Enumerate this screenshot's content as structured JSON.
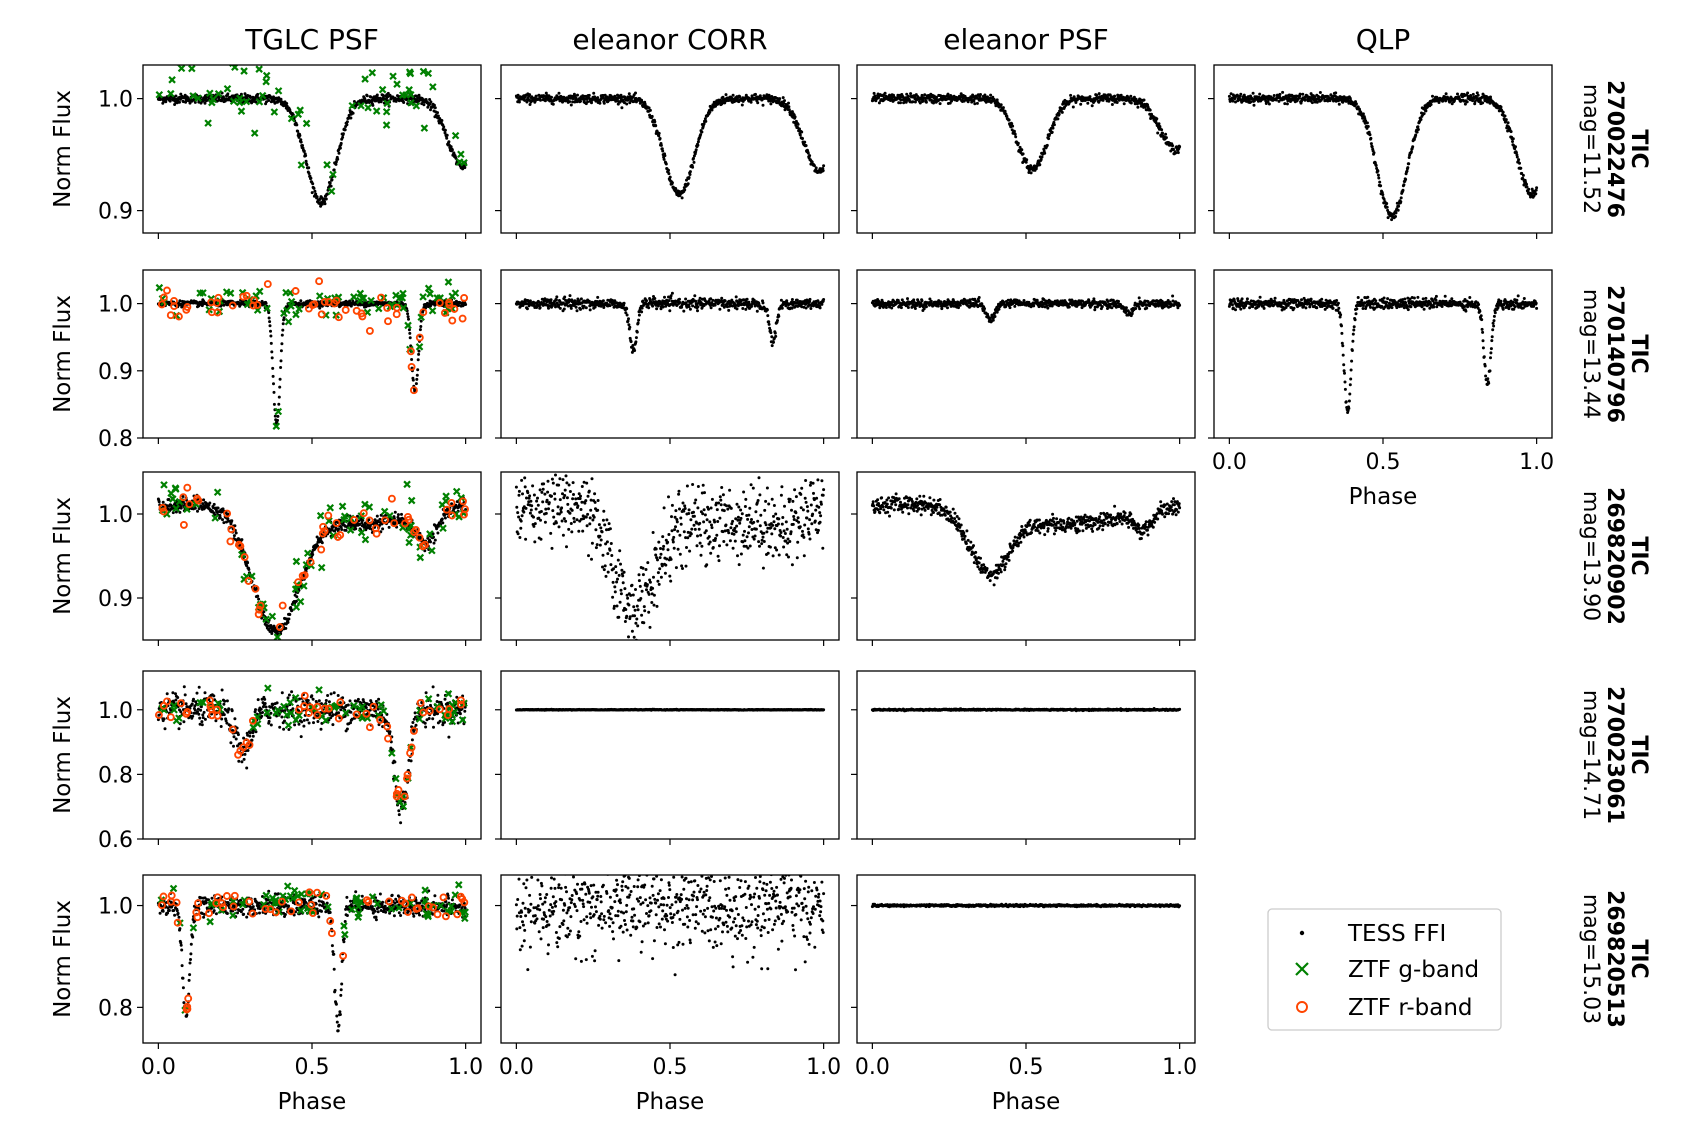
{
  "chart_data": {
    "type": "scatter",
    "column_titles": [
      "TGLC PSF",
      "eleanor CORR",
      "eleanor PSF",
      "QLP"
    ],
    "row_labels": [
      {
        "tic_label": "TIC",
        "tic": "270022476",
        "mag": "mag=11.52"
      },
      {
        "tic_label": "TIC",
        "tic": "270140796",
        "mag": "mag=13.44"
      },
      {
        "tic_label": "TIC",
        "tic": "269820902",
        "mag": "mag=13.90"
      },
      {
        "tic_label": "TIC",
        "tic": "270023061",
        "mag": "mag=14.71"
      },
      {
        "tic_label": "TIC",
        "tic": "269820513",
        "mag": "mag=15.03"
      }
    ],
    "xlabel": "Phase",
    "ylabel": "Norm Flux",
    "xlim": [
      -0.05,
      1.05
    ],
    "xticks": [
      "0.0",
      "0.5",
      "1.0"
    ],
    "xtick_values": [
      0.0,
      0.5,
      1.0
    ],
    "rows": [
      {
        "ylim": [
          0.88,
          1.03
        ],
        "yticks": [
          0.9,
          1.0
        ],
        "ytick_labels": [
          "0.9",
          "1.0"
        ]
      },
      {
        "ylim": [
          0.8,
          1.05
        ],
        "yticks": [
          0.8,
          0.9,
          1.0
        ],
        "ytick_labels": [
          "0.8",
          "0.9",
          "1.0"
        ]
      },
      {
        "ylim": [
          0.85,
          1.05
        ],
        "yticks": [
          0.9,
          1.0
        ],
        "ytick_labels": [
          "0.9",
          "1.0"
        ]
      },
      {
        "ylim": [
          0.6,
          1.12
        ],
        "yticks": [
          0.6,
          0.8,
          1.0
        ],
        "ytick_labels": [
          "0.6",
          "0.8",
          "1.0"
        ]
      },
      {
        "ylim": [
          0.73,
          1.06
        ],
        "yticks": [
          0.8,
          1.0
        ],
        "ytick_labels": [
          "0.8",
          "1.0"
        ]
      }
    ],
    "series": [
      {
        "name": "TESS FFI",
        "color": "#000000",
        "marker": "point"
      },
      {
        "name": "ZTF g-band",
        "color": "#008000",
        "marker": "x"
      },
      {
        "name": "ZTF r-band",
        "color": "#ff4500",
        "marker": "open-circle"
      }
    ],
    "panels": [
      {
        "row": 0,
        "col": 0,
        "noise": 0.002,
        "dips": [
          {
            "center": 0.53,
            "depth": 0.092,
            "width": 0.085
          },
          {
            "center": 0.99,
            "depth": 0.06,
            "width": 0.085
          }
        ],
        "ztf_g": true,
        "ztf_g_scatter": 0.018,
        "ztf_r": false
      },
      {
        "row": 0,
        "col": 1,
        "noise": 0.002,
        "dips": [
          {
            "center": 0.53,
            "depth": 0.086,
            "width": 0.085
          },
          {
            "center": 0.985,
            "depth": 0.065,
            "width": 0.085
          }
        ],
        "ztf_g": false,
        "ztf_r": false
      },
      {
        "row": 0,
        "col": 2,
        "noise": 0.002,
        "dips": [
          {
            "center": 0.52,
            "depth": 0.063,
            "width": 0.085
          },
          {
            "center": 0.985,
            "depth": 0.045,
            "width": 0.085
          }
        ],
        "ztf_g": false,
        "ztf_r": false
      },
      {
        "row": 0,
        "col": 3,
        "noise": 0.002,
        "dips": [
          {
            "center": 0.53,
            "depth": 0.105,
            "width": 0.085
          },
          {
            "center": 0.985,
            "depth": 0.085,
            "width": 0.085
          }
        ],
        "ztf_g": false,
        "ztf_r": false
      },
      {
        "row": 1,
        "col": 0,
        "noise": 0.002,
        "dips": [
          {
            "center": 0.385,
            "depth": 0.18,
            "width": 0.02
          },
          {
            "center": 0.835,
            "depth": 0.13,
            "width": 0.02
          }
        ],
        "ztf_g": true,
        "ztf_g_scatter": 0.015,
        "ztf_r": true,
        "ztf_r_scatter": 0.015
      },
      {
        "row": 1,
        "col": 1,
        "noise": 0.004,
        "dips": [
          {
            "center": 0.38,
            "depth": 0.07,
            "width": 0.02
          },
          {
            "center": 0.835,
            "depth": 0.055,
            "width": 0.02
          }
        ],
        "ztf_g": false,
        "ztf_r": false
      },
      {
        "row": 1,
        "col": 2,
        "noise": 0.003,
        "dips": [
          {
            "center": 0.385,
            "depth": 0.025,
            "width": 0.025
          },
          {
            "center": 0.835,
            "depth": 0.015,
            "width": 0.025
          }
        ],
        "ztf_g": false,
        "ztf_r": false
      },
      {
        "row": 1,
        "col": 3,
        "noise": 0.004,
        "dips": [
          {
            "center": 0.385,
            "depth": 0.16,
            "width": 0.02
          },
          {
            "center": 0.84,
            "depth": 0.12,
            "width": 0.02
          }
        ],
        "ztf_g": false,
        "ztf_r": false
      },
      {
        "row": 2,
        "col": 0,
        "noise": 0.004,
        "wide": true,
        "dips": [
          {
            "center": 0.38,
            "depth": 0.14,
            "width": 0.13
          },
          {
            "center": 0.87,
            "depth": 0.035,
            "width": 0.06
          }
        ],
        "ztf_g": true,
        "ztf_g_scatter": 0.015,
        "ztf_r": true,
        "ztf_r_scatter": 0.01
      },
      {
        "row": 2,
        "col": 1,
        "noise": 0.022,
        "wide": true,
        "dips": [
          {
            "center": 0.38,
            "depth": 0.11,
            "width": 0.12
          },
          {
            "center": 0.87,
            "depth": 0.02,
            "width": 0.06
          }
        ],
        "ztf_g": false,
        "ztf_r": false
      },
      {
        "row": 2,
        "col": 2,
        "noise": 0.005,
        "wide": true,
        "dips": [
          {
            "center": 0.38,
            "depth": 0.07,
            "width": 0.11
          },
          {
            "center": 0.88,
            "depth": 0.02,
            "width": 0.05
          }
        ],
        "ztf_g": false,
        "ztf_r": false
      },
      {
        "row": 3,
        "col": 0,
        "noise": 0.025,
        "dips": [
          {
            "center": 0.275,
            "depth": 0.13,
            "width": 0.045
          },
          {
            "center": 0.79,
            "depth": 0.3,
            "width": 0.04
          }
        ],
        "ztf_g": true,
        "ztf_g_scatter": 0.025,
        "ztf_r": true,
        "ztf_r_scatter": 0.02
      },
      {
        "row": 3,
        "col": 1,
        "noise": 0.0005,
        "dips": [],
        "ztf_g": false,
        "ztf_r": false
      },
      {
        "row": 3,
        "col": 2,
        "noise": 0.001,
        "dips": [],
        "ztf_g": false,
        "ztf_r": false
      },
      {
        "row": 4,
        "col": 0,
        "noise": 0.01,
        "dips": [
          {
            "center": 0.09,
            "depth": 0.22,
            "width": 0.02
          },
          {
            "center": 0.585,
            "depth": 0.24,
            "width": 0.02
          }
        ],
        "ztf_g": true,
        "ztf_g_scatter": 0.015,
        "ztf_r": true,
        "ztf_r_scatter": 0.01
      },
      {
        "row": 4,
        "col": 1,
        "noise": 0.045,
        "dips": [],
        "ztf_g": false,
        "ztf_r": false
      },
      {
        "row": 4,
        "col": 2,
        "noise": 0.001,
        "dips": [],
        "ztf_g": false,
        "ztf_r": false
      }
    ],
    "grid": false,
    "legend_position": "bottom-right"
  }
}
